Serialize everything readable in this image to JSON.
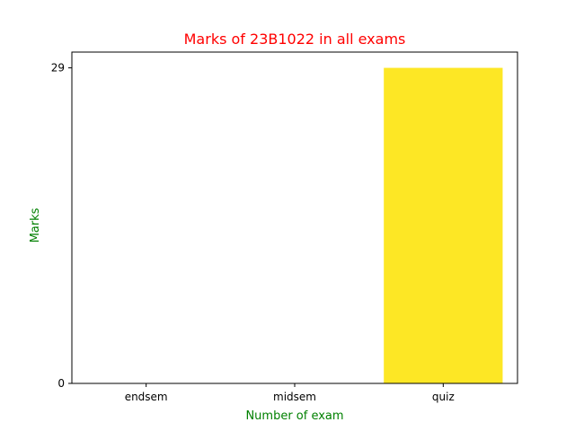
{
  "chart_data": {
    "type": "bar",
    "title": "Marks of 23B1022 in all exams",
    "xlabel": "Number of exam",
    "ylabel": "Marks",
    "categories": [
      "endsem",
      "midsem",
      "quiz"
    ],
    "values": [
      0,
      0,
      29
    ],
    "yticks": [
      0,
      29
    ],
    "ylim": [
      0,
      30.45
    ],
    "grid": false,
    "legend": "none",
    "colors": {
      "title": "#ff0000",
      "axis_labels": "#008000",
      "bar_scale_low": "#440154",
      "bar_scale_high": "#fde725",
      "axes": "#000000"
    }
  }
}
